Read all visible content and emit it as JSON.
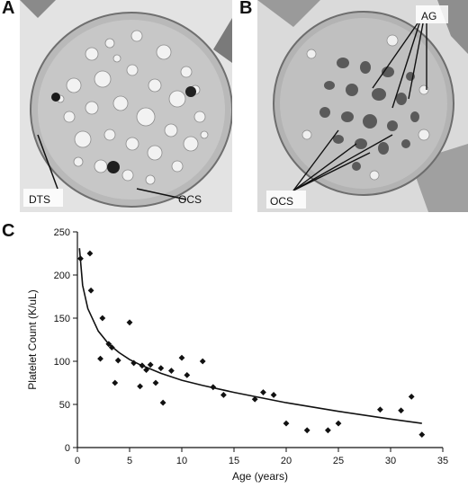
{
  "figure": {
    "panel_a": {
      "label": "A",
      "annotations": [
        "DTS",
        "OCS"
      ]
    },
    "panel_b": {
      "label": "B",
      "annotations": [
        "AG",
        "OCS"
      ]
    },
    "panel_c": {
      "label": "C"
    }
  },
  "chart_data": {
    "type": "scatter",
    "title": "",
    "xlabel": "Age (years)",
    "ylabel": "Platelet Count (K/uL)",
    "xlim": [
      0,
      35
    ],
    "ylim": [
      0,
      250
    ],
    "xticks": [
      0,
      5,
      10,
      15,
      20,
      25,
      30,
      35
    ],
    "yticks": [
      0,
      50,
      100,
      150,
      200,
      250
    ],
    "grid": false,
    "legend": "none",
    "series": [
      {
        "type": "scatter",
        "marker": "diamond",
        "color": "#111111",
        "x": [
          0.3,
          1.2,
          1.3,
          2.2,
          2.4,
          3.0,
          3.3,
          3.6,
          3.9,
          5.0,
          5.4,
          6.0,
          6.2,
          6.6,
          7.0,
          7.5,
          8.0,
          8.2,
          9.0,
          10.0,
          10.5,
          12.0,
          13.0,
          14.0,
          17.0,
          17.8,
          18.8,
          20.0,
          22.0,
          24.0,
          25.0,
          29.0,
          31.0,
          32.0,
          33.0
        ],
        "y": [
          219,
          225,
          182,
          103,
          150,
          120,
          116,
          75,
          101,
          145,
          98,
          71,
          95,
          90,
          96,
          75,
          92,
          52,
          89,
          104,
          84,
          100,
          70,
          61,
          56,
          64,
          61,
          28,
          20,
          20,
          28,
          44,
          43,
          59,
          15
        ]
      },
      {
        "type": "line",
        "color": "#111111",
        "x": [
          0.2,
          0.5,
          1,
          2,
          3,
          4,
          5,
          6,
          8,
          10,
          12,
          15,
          20,
          25,
          30,
          33
        ],
        "y": [
          231,
          188,
          161,
          135,
          120,
          110,
          102,
          96,
          86,
          78,
          72,
          64,
          52,
          42,
          33,
          28
        ]
      }
    ]
  }
}
